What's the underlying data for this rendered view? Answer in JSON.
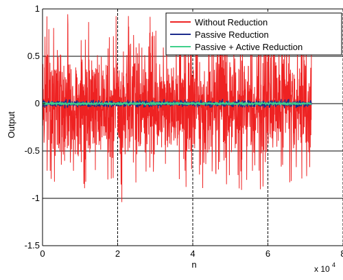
{
  "chart_data": {
    "type": "line",
    "title": "",
    "xlabel": "n",
    "ylabel": "Output",
    "x_multiplier_label": "x 10",
    "x_multiplier_exponent": "4",
    "xlim": [
      0,
      80000
    ],
    "ylim": [
      -1.5,
      1
    ],
    "x_ticks": [
      0,
      20000,
      40000,
      60000,
      80000
    ],
    "x_tick_labels": [
      "0",
      "2",
      "4",
      "6",
      "8"
    ],
    "y_ticks": [
      -1.5,
      -1,
      -0.5,
      0,
      0.5,
      1
    ],
    "y_tick_labels": [
      "-1.5",
      "-1",
      "-0.5",
      "0",
      "0.5",
      "1"
    ],
    "grid": true,
    "legend_position": "top-right",
    "x_data_range": [
      0,
      71600
    ],
    "series": [
      {
        "name": "Without  Reduction",
        "color": "#ee2222",
        "typical_amplitude": 0.55,
        "peak_range": [
          -1.04,
          0.95
        ]
      },
      {
        "name": "Passive  Reduction",
        "color": "#1b2a8c",
        "typical_amplitude": 0.03,
        "peak_range": [
          -0.05,
          0.05
        ]
      },
      {
        "name": "Passive  + Active  Reduction",
        "color": "#3ed08a",
        "typical_amplitude": 0.012,
        "peak_range": [
          -0.02,
          0.02
        ]
      }
    ]
  }
}
